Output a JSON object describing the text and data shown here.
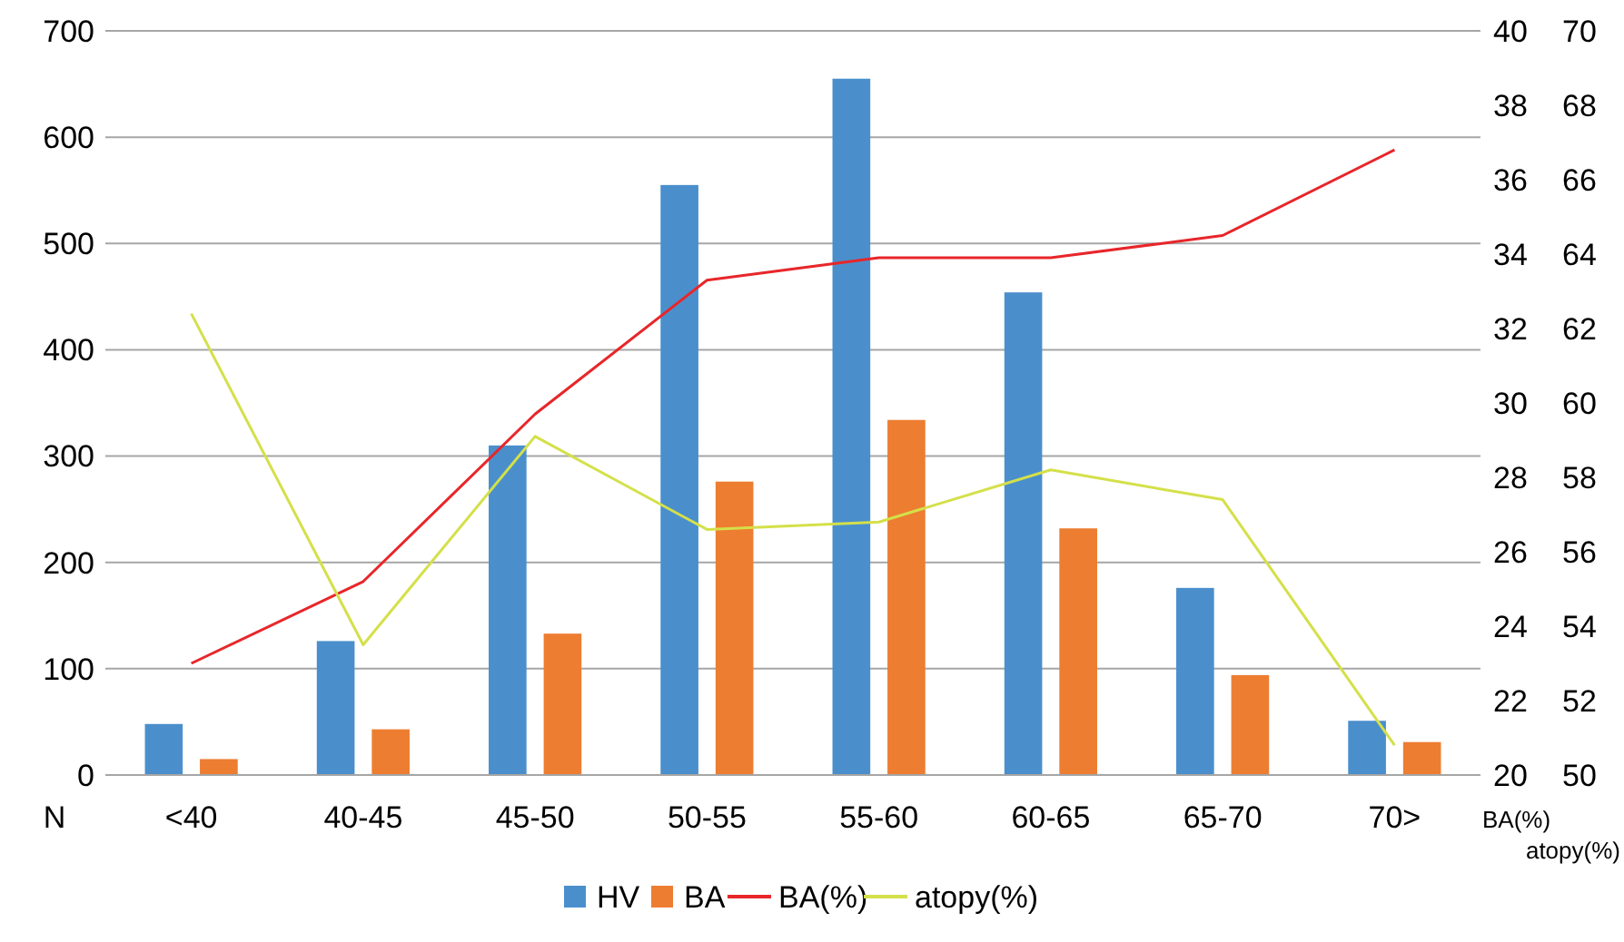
{
  "chart_data": {
    "type": "bar",
    "categories": [
      "<40",
      "40-45",
      "45-50",
      "50-55",
      "55-60",
      "60-65",
      "65-70",
      "70>"
    ],
    "ylabel": "N",
    "y2label": "BA(%)",
    "y3label": "atopy(%)",
    "ylim": [
      0,
      700
    ],
    "yticks": [
      0,
      100,
      200,
      300,
      400,
      500,
      600,
      700
    ],
    "y2lim": [
      20,
      40
    ],
    "y2ticks": [
      20,
      22,
      24,
      26,
      28,
      30,
      32,
      34,
      36,
      38,
      40
    ],
    "y3lim": [
      50,
      70
    ],
    "y3ticks": [
      50,
      52,
      54,
      56,
      58,
      60,
      62,
      64,
      66,
      68,
      70
    ],
    "grid": "y",
    "legend": "bottom",
    "series": [
      {
        "name": "HV",
        "color": "#4a8fcc",
        "values": [
          48,
          126,
          310,
          555,
          655,
          454,
          176,
          51
        ]
      },
      {
        "name": "BA",
        "color": "#ed7d31",
        "values": [
          15,
          43,
          133,
          276,
          334,
          232,
          94,
          31
        ]
      },
      {
        "name": "BA(%)",
        "type": "line",
        "axis": "y2",
        "color": "#e8262a",
        "values": [
          23.0,
          25.2,
          29.7,
          33.3,
          33.9,
          33.9,
          34.5,
          36.8
        ]
      },
      {
        "name": "atopy(%)",
        "type": "line",
        "axis": "y3",
        "color": "#d4e04a",
        "values": [
          62.4,
          53.5,
          59.1,
          56.6,
          56.8,
          58.2,
          57.4,
          50.8
        ]
      }
    ]
  }
}
